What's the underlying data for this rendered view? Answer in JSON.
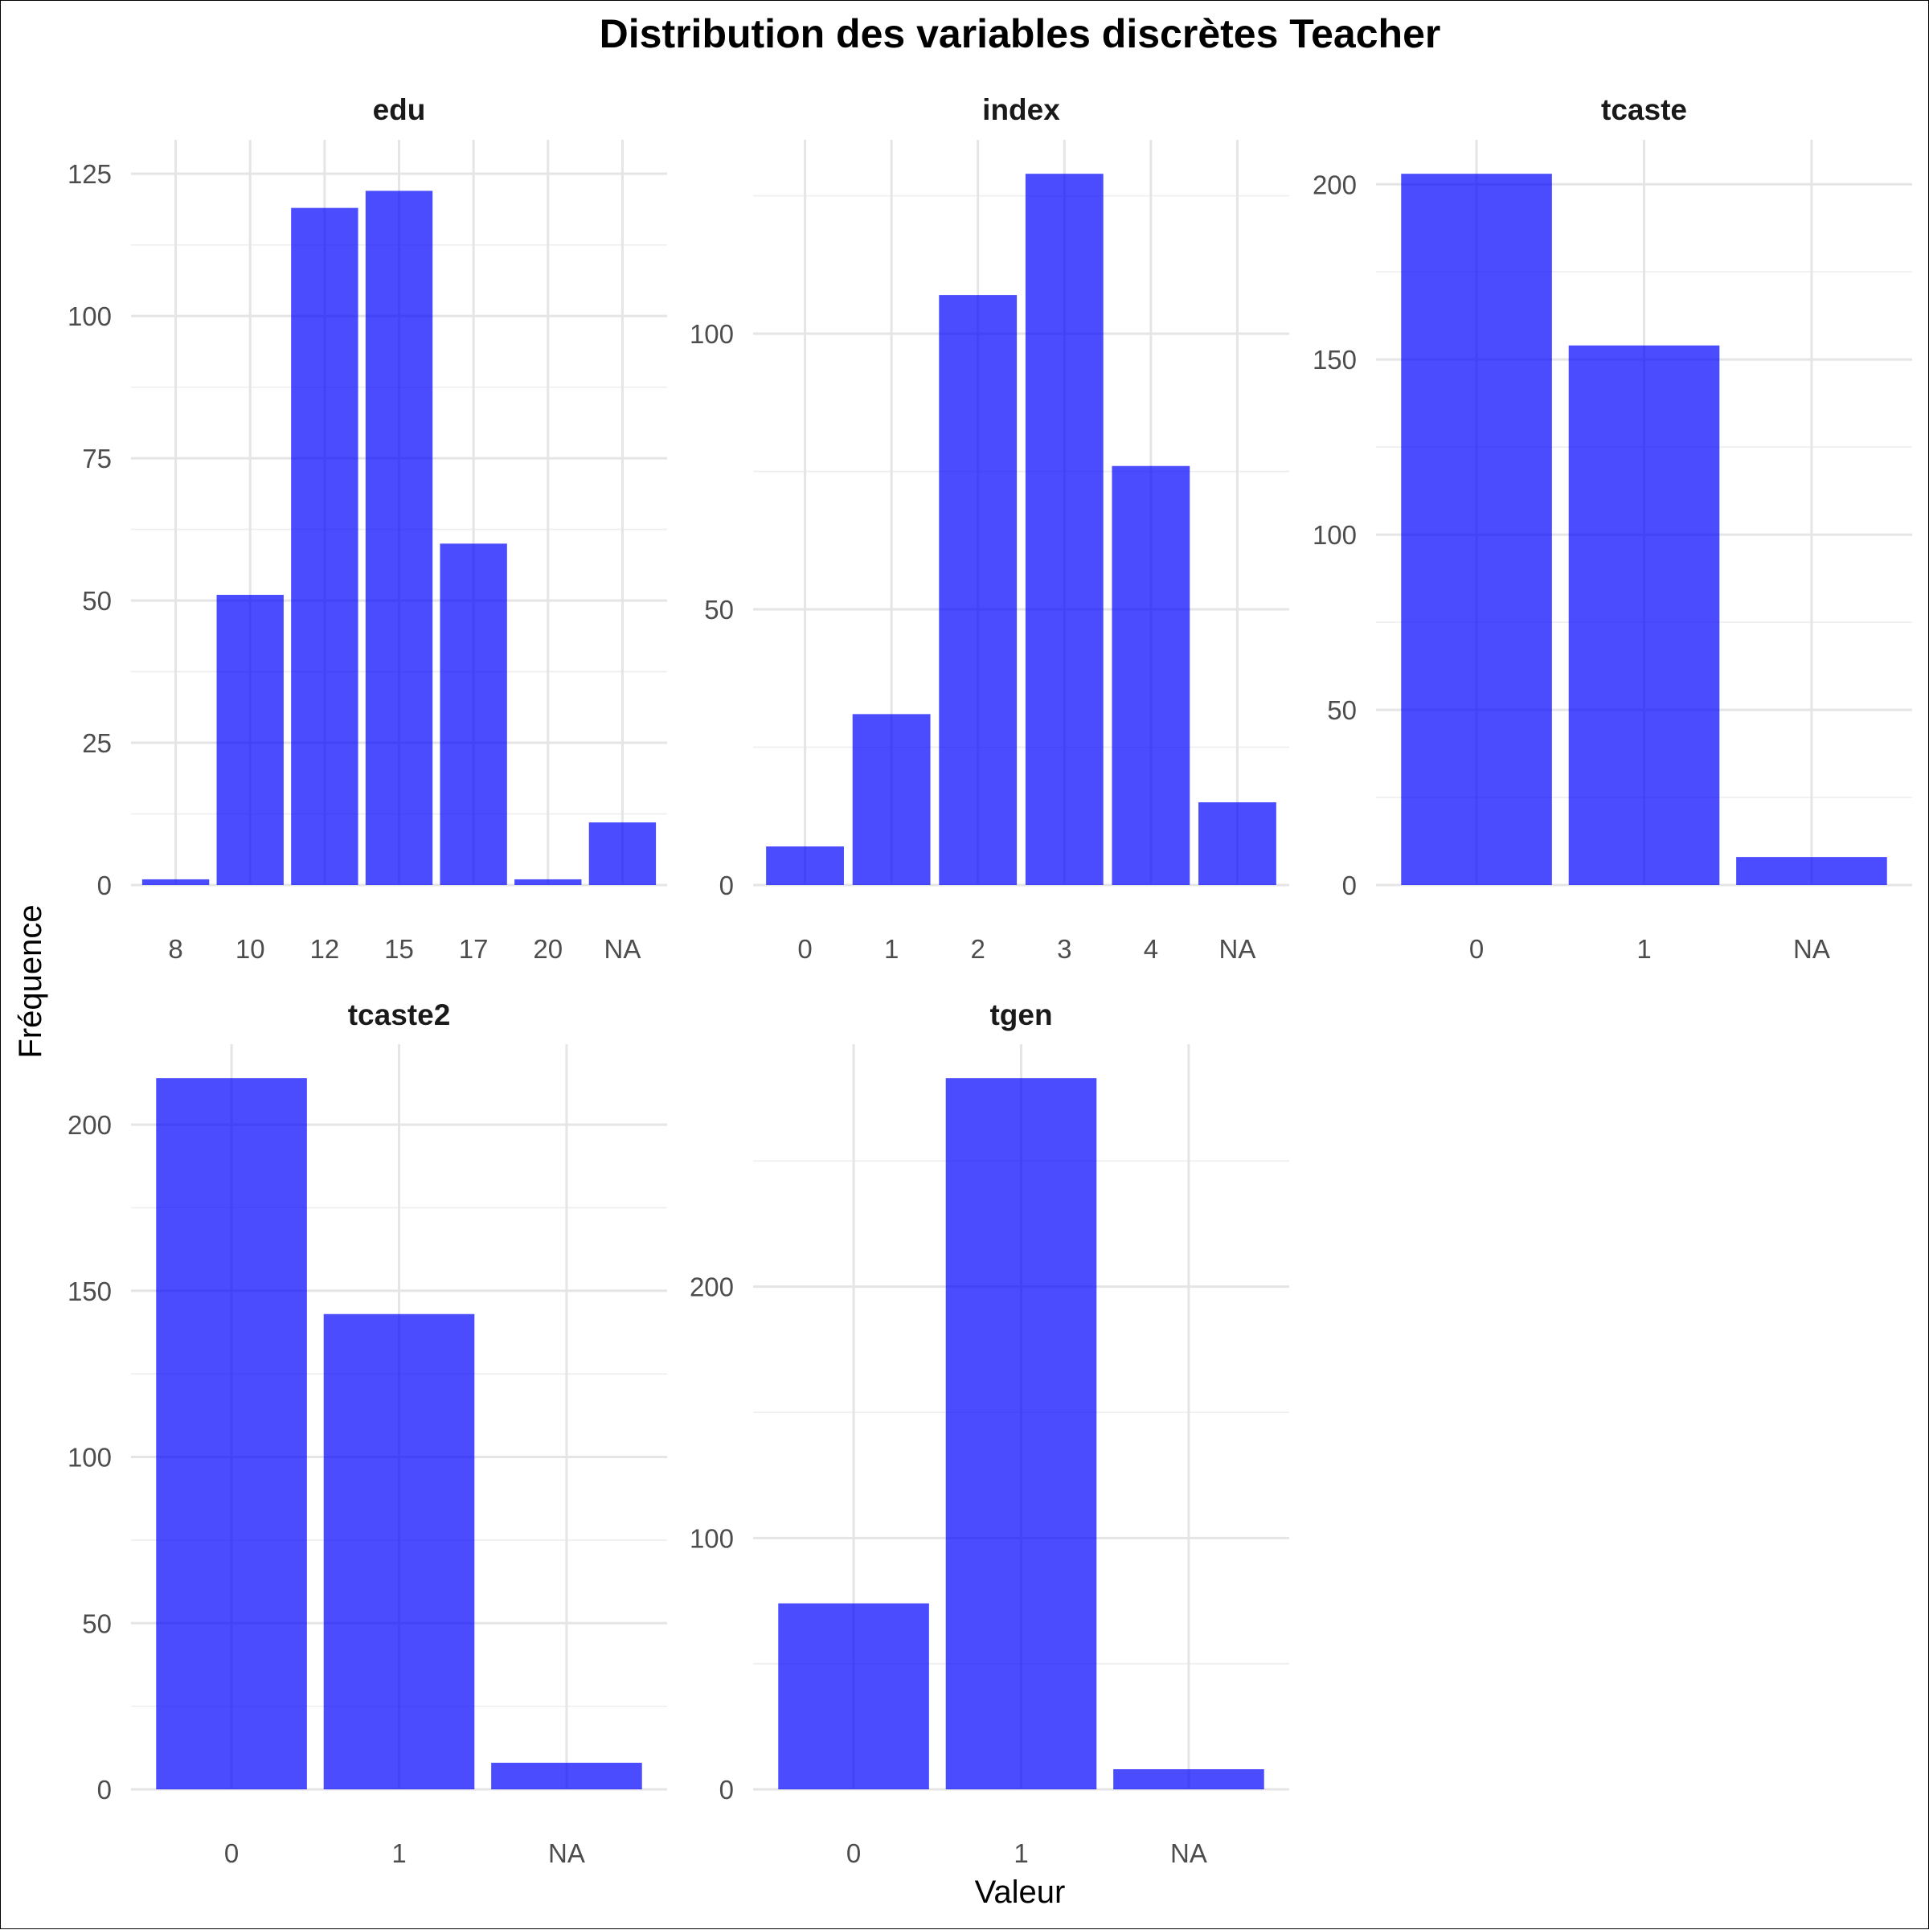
{
  "chart_data": {
    "type": "bar",
    "title": "Distribution des variables discrètes Teacher",
    "xlabel": "Valeur",
    "ylabel": "Fréquence",
    "bar_color": "#0000FF",
    "bar_opacity": 0.7,
    "grid": true,
    "facets": [
      {
        "name": "edu",
        "categories": [
          "8",
          "10",
          "12",
          "15",
          "17",
          "20",
          "NA"
        ],
        "values": [
          1,
          51,
          119,
          122,
          60,
          1,
          11
        ],
        "ylim": [
          0,
          125
        ],
        "yticks": [
          0,
          25,
          50,
          75,
          100,
          125
        ]
      },
      {
        "name": "index",
        "categories": [
          "0",
          "1",
          "2",
          "3",
          "4",
          "NA"
        ],
        "values": [
          7,
          31,
          107,
          129,
          76,
          15
        ],
        "ylim": [
          0,
          129
        ],
        "yticks": [
          0,
          50,
          100
        ]
      },
      {
        "name": "tcaste",
        "categories": [
          "0",
          "1",
          "NA"
        ],
        "values": [
          203,
          154,
          8
        ],
        "ylim": [
          0,
          203
        ],
        "yticks": [
          0,
          50,
          100,
          150,
          200
        ]
      },
      {
        "name": "tcaste2",
        "categories": [
          "0",
          "1",
          "NA"
        ],
        "values": [
          214,
          143,
          8
        ],
        "ylim": [
          0,
          214
        ],
        "yticks": [
          0,
          50,
          100,
          150,
          200
        ]
      },
      {
        "name": "tgen",
        "categories": [
          "0",
          "1",
          "NA"
        ],
        "values": [
          74,
          283,
          8
        ],
        "ylim": [
          0,
          283
        ],
        "yticks": [
          0,
          100,
          200
        ]
      }
    ]
  }
}
